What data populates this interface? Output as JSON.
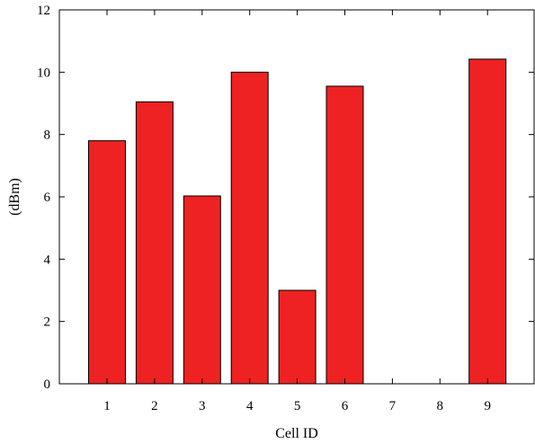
{
  "chart_data": {
    "type": "bar",
    "title": "",
    "xlabel": "Cell ID",
    "ylabel": "(dBm)",
    "categories": [
      "1",
      "2",
      "3",
      "4",
      "5",
      "6",
      "7",
      "8",
      "9"
    ],
    "values": [
      7.8,
      9.05,
      6.03,
      10.0,
      3.0,
      9.55,
      0,
      0,
      10.42
    ],
    "ylim": [
      0,
      12
    ],
    "yticks": [
      "0",
      "2",
      "4",
      "6",
      "8",
      "10",
      "12"
    ],
    "grid": false,
    "legend": "none",
    "bar_color": "#ee2222",
    "bar_edge_color": "#000000"
  }
}
